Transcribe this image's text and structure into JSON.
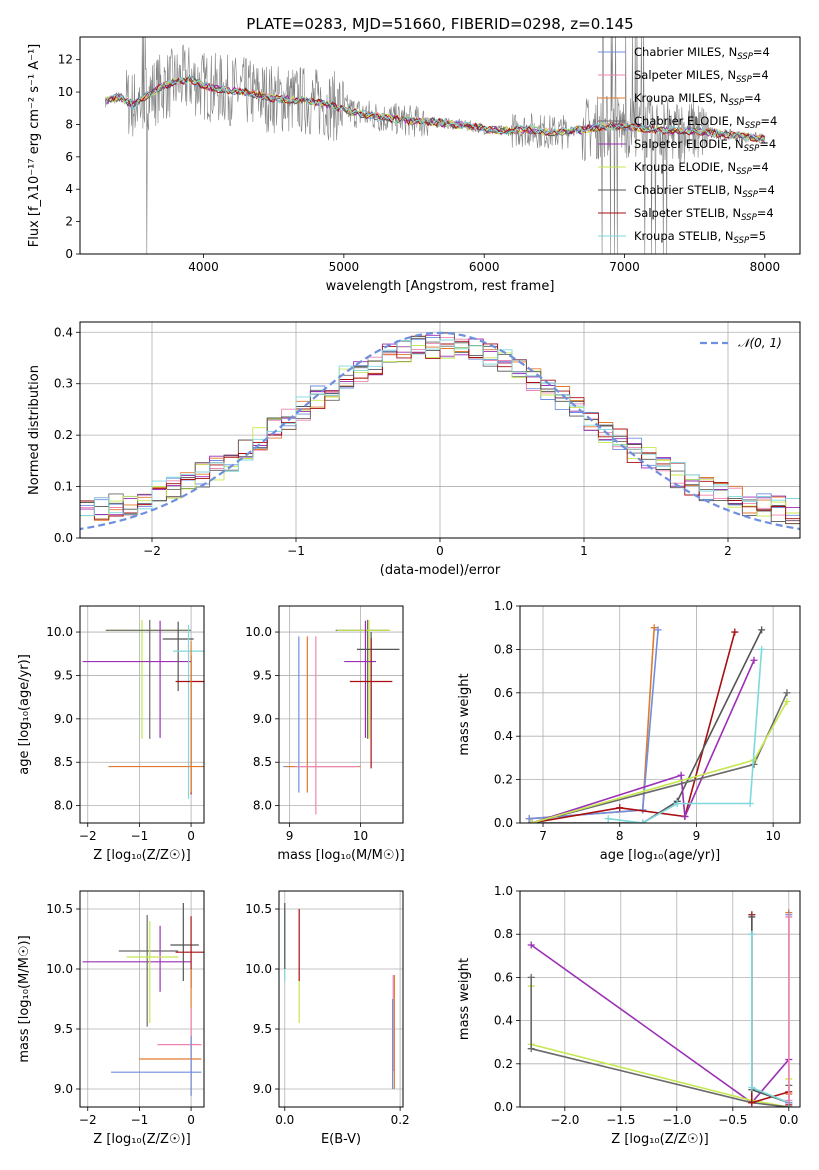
{
  "title": "PLATE=0283, MJD=51660, FIBERID=0298, z=0.145",
  "colors": {
    "Chabrier MILES": "#6f8fdf",
    "Salpeter MILES": "#ef85b0",
    "Kroupa MILES": "#e07a2e",
    "Chabrier ELODIE": "#6a6a6a",
    "Salpeter ELODIE": "#9b2fb5",
    "Kroupa ELODIE": "#c5e84f",
    "Chabrier STELIB": "#555555",
    "Salpeter STELIB": "#a80f12",
    "Kroupa STELIB": "#7ed8dc",
    "data": "#808080",
    "normal": "#6f8fdf"
  },
  "chart_data": [
    {
      "id": "spectrum",
      "type": "line",
      "xlabel": "wavelength [Angstrom, rest frame]",
      "ylabel": "Flux [f_λ10⁻¹⁷ erg cm⁻² s⁻¹ A⁻¹]",
      "xlim": [
        3120,
        8250
      ],
      "ylim": [
        0,
        13.4
      ],
      "xticks": [
        4000,
        5000,
        6000,
        7000,
        8000
      ],
      "yticks": [
        0,
        2,
        4,
        6,
        8,
        10,
        12
      ],
      "grid": false,
      "legend_placement": "right",
      "legend": [
        {
          "model": "Chabrier MILES",
          "nssp": "4"
        },
        {
          "model": "Salpeter MILES",
          "nssp": "4"
        },
        {
          "model": "Kroupa MILES",
          "nssp": "4"
        },
        {
          "model": "Chabrier ELODIE",
          "nssp": "4"
        },
        {
          "model": "Salpeter ELODIE",
          "nssp": "4"
        },
        {
          "model": "Kroupa ELODIE",
          "nssp": "4"
        },
        {
          "model": "Chabrier STELIB",
          "nssp": "4"
        },
        {
          "model": "Salpeter STELIB",
          "nssp": "4"
        },
        {
          "model": "Kroupa STELIB",
          "nssp": "5"
        }
      ],
      "model_continuum": {
        "x": [
          3300,
          3400,
          3500,
          3600,
          3700,
          3800,
          3900,
          4000,
          4100,
          4300,
          4500,
          4700,
          4900,
          5100,
          5300,
          5500,
          5700,
          5900,
          6100,
          6300,
          6500,
          6700,
          6900,
          7100,
          7300,
          7500,
          7700,
          7900,
          8000
        ],
        "y": [
          9.4,
          9.7,
          9.2,
          9.8,
          10.3,
          10.6,
          10.8,
          10.4,
          10.2,
          10.0,
          9.6,
          9.5,
          9.2,
          8.7,
          8.4,
          8.2,
          8.1,
          7.9,
          7.6,
          7.7,
          7.5,
          7.7,
          7.9,
          7.8,
          7.6,
          7.6,
          7.4,
          7.2,
          7.1
        ]
      }
    },
    {
      "id": "residuals",
      "type": "line",
      "xlabel": "(data-model)/error",
      "ylabel": "Normed distribution",
      "xlim": [
        -2.5,
        2.5
      ],
      "ylim": [
        0,
        0.42
      ],
      "xticks": [
        -2,
        -1,
        0,
        1,
        2
      ],
      "yticks": [
        0.0,
        0.1,
        0.2,
        0.3,
        0.4
      ],
      "grid": true,
      "legend_placement": "top-right",
      "legend_label": "𝒩(0, 1)",
      "normal": {
        "mean": 0,
        "sigma": 1
      }
    },
    {
      "id": "age-vs-Z",
      "type": "scatter",
      "xlabel": "Z [log₁₀(Z/Z☉)]",
      "ylabel": "age  [log₁₀(age/yr)]",
      "xlim": [
        -2.15,
        0.25
      ],
      "ylim": [
        7.8,
        10.3
      ],
      "xticks": [
        -2,
        -1,
        0
      ],
      "yticks": [
        8.0,
        8.5,
        9.0,
        9.5,
        10.0
      ],
      "grid": true,
      "errorbars": [
        {
          "model": "Kroupa ELODIE",
          "x": -0.95,
          "xerr": [
            0.7,
            0.95
          ],
          "y": 10.02,
          "yerr": [
            1.25,
            0.12
          ]
        },
        {
          "model": "Chabrier ELODIE",
          "x": -0.8,
          "xerr": [
            0.85,
            0.8
          ],
          "y": 10.02,
          "yerr": [
            1.25,
            0.12
          ]
        },
        {
          "model": "Salpeter ELODIE",
          "x": -0.6,
          "xerr": [
            1.5,
            0.6
          ],
          "y": 9.66,
          "yerr": [
            0.88,
            0.47
          ]
        },
        {
          "model": "Chabrier STELIB",
          "x": -0.25,
          "xerr": [
            0.3,
            0.3
          ],
          "y": 9.92,
          "yerr": [
            0.6,
            0.2
          ]
        },
        {
          "model": "Kroupa STELIB",
          "x": -0.05,
          "xerr": [
            0.3,
            0.3
          ],
          "y": 9.78,
          "yerr": [
            1.7,
            0.3
          ]
        },
        {
          "model": "Salpeter STELIB",
          "x": 0.0,
          "xerr": [
            0.3,
            0.3
          ],
          "y": 9.43,
          "yerr": [
            1.3,
            0.3
          ]
        },
        {
          "model": "Kroupa MILES",
          "x": 0.0,
          "xerr": [
            1.6,
            0.25
          ],
          "y": 8.45,
          "yerr": [
            0.3,
            1.45
          ]
        }
      ]
    },
    {
      "id": "age-vs-mass",
      "type": "scatter",
      "xlabel": "mass [log₁₀(M/M☉)]",
      "ylabel": "",
      "xlim": [
        8.85,
        10.6
      ],
      "ylim": [
        7.8,
        10.3
      ],
      "xticks": [
        9,
        10
      ],
      "yticks": [
        8.0,
        8.5,
        9.0,
        9.5,
        10.0
      ],
      "grid": true,
      "errorbars": [
        {
          "model": "Chabrier ELODIE",
          "x": 10.1,
          "xerr": [
            0.45,
            0.3
          ],
          "y": 10.02,
          "yerr": [
            1.25,
            0.12
          ]
        },
        {
          "model": "Kroupa ELODIE",
          "x": 10.12,
          "xerr": [
            0.45,
            0.3
          ],
          "y": 10.02,
          "yerr": [
            1.25,
            0.12
          ]
        },
        {
          "model": "Salpeter ELODIE",
          "x": 10.07,
          "xerr": [
            0.3,
            0.15
          ],
          "y": 9.66,
          "yerr": [
            0.88,
            0.47
          ]
        },
        {
          "model": "Chabrier STELIB",
          "x": 10.15,
          "xerr": [
            0.2,
            0.4
          ],
          "y": 9.8,
          "yerr": [
            0.8,
            0.2
          ]
        },
        {
          "model": "Salpeter STELIB",
          "x": 10.15,
          "xerr": [
            0.3,
            0.3
          ],
          "y": 9.43,
          "yerr": [
            1.0,
            0.5
          ]
        },
        {
          "model": "Chabrier MILES",
          "x": 9.13,
          "xerr": [
            0.22,
            0.8
          ],
          "y": 8.45,
          "yerr": [
            0.3,
            1.5
          ]
        },
        {
          "model": "Kroupa MILES",
          "x": 9.25,
          "xerr": [
            0.3,
            0.75
          ],
          "y": 8.45,
          "yerr": [
            0.3,
            1.5
          ]
        },
        {
          "model": "Salpeter MILES",
          "x": 9.37,
          "xerr": [
            0.3,
            0.6
          ],
          "y": 8.45,
          "yerr": [
            0.55,
            1.5
          ]
        }
      ]
    },
    {
      "id": "weight-vs-age",
      "type": "line",
      "xlabel": "age  [log₁₀(age/yr)]",
      "ylabel": "mass weight",
      "xlim": [
        6.7,
        10.35
      ],
      "ylim": [
        0,
        1.0
      ],
      "xticks": [
        7,
        8,
        9,
        10
      ],
      "yticks": [
        0.0,
        0.2,
        0.4,
        0.6,
        0.8,
        1.0
      ],
      "grid": true,
      "series": [
        {
          "model": "Kroupa MILES",
          "x": [
            6.82,
            8.3,
            8.45
          ],
          "y": [
            0.02,
            0.06,
            0.9
          ]
        },
        {
          "model": "Chabrier MILES",
          "x": [
            6.82,
            8.3,
            8.5
          ],
          "y": [
            0.02,
            0.06,
            0.89
          ]
        },
        {
          "model": "Salpeter STELIB",
          "x": [
            6.85,
            8.0,
            8.85,
            9.5
          ],
          "y": [
            0.0,
            0.07,
            0.03,
            0.88
          ]
        },
        {
          "model": "Chabrier STELIB",
          "x": [
            6.85,
            8.3,
            8.75,
            9.85
          ],
          "y": [
            0.0,
            0.0,
            0.1,
            0.89
          ]
        },
        {
          "model": "Salpeter ELODIE",
          "x": [
            6.85,
            8.8,
            8.85,
            9.75
          ],
          "y": [
            0.0,
            0.22,
            0.03,
            0.75
          ]
        },
        {
          "model": "Chabrier ELODIE",
          "x": [
            6.85,
            9.75,
            10.18
          ],
          "y": [
            0.0,
            0.27,
            0.6
          ]
        },
        {
          "model": "Kroupa ELODIE",
          "x": [
            6.85,
            9.75,
            10.18
          ],
          "y": [
            0.0,
            0.29,
            0.56
          ]
        },
        {
          "model": "Kroupa STELIB",
          "x": [
            7.85,
            8.3,
            8.75,
            9.7,
            9.85
          ],
          "y": [
            0.02,
            0.0,
            0.09,
            0.09,
            0.8
          ]
        }
      ]
    },
    {
      "id": "mass-vs-Z",
      "type": "scatter",
      "xlabel": "Z [log₁₀(Z/Z☉)]",
      "ylabel": "mass [log₁₀(M/M☉)]",
      "xlim": [
        -2.15,
        0.25
      ],
      "ylim": [
        8.85,
        10.65
      ],
      "xticks": [
        -2,
        -1,
        0
      ],
      "yticks": [
        9.0,
        9.5,
        10.0,
        10.5
      ],
      "grid": true,
      "errorbars": [
        {
          "model": "Salpeter ELODIE",
          "x": -0.6,
          "xerr": [
            1.5,
            0.6
          ],
          "y": 10.06,
          "yerr": [
            0.25,
            0.3
          ]
        },
        {
          "model": "Chabrier ELODIE",
          "x": -0.85,
          "xerr": [
            0.55,
            0.6
          ],
          "y": 10.15,
          "yerr": [
            0.63,
            0.3
          ]
        },
        {
          "model": "Kroupa ELODIE",
          "x": -0.8,
          "xerr": [
            0.45,
            0.55
          ],
          "y": 10.1,
          "yerr": [
            0.55,
            0.3
          ]
        },
        {
          "model": "Chabrier STELIB",
          "x": -0.15,
          "xerr": [
            0.25,
            0.3
          ],
          "y": 10.2,
          "yerr": [
            0.3,
            0.35
          ]
        },
        {
          "model": "Salpeter STELIB",
          "x": 0.0,
          "xerr": [
            0.3,
            0.25
          ],
          "y": 10.14,
          "yerr": [
            0.3,
            0.3
          ]
        },
        {
          "model": "Kroupa MILES",
          "x": 0.0,
          "xerr": [
            1.0,
            0.2
          ],
          "y": 9.25,
          "yerr": [
            0.3,
            0.75
          ]
        },
        {
          "model": "Salpeter MILES",
          "x": 0.0,
          "xerr": [
            0.65,
            0.2
          ],
          "y": 9.37,
          "yerr": [
            0.3,
            0.3
          ]
        },
        {
          "model": "Chabrier MILES",
          "x": 0.0,
          "xerr": [
            1.55,
            0.2
          ],
          "y": 9.14,
          "yerr": [
            0.2,
            0.3
          ]
        }
      ]
    },
    {
      "id": "mass-vs-EBV",
      "type": "scatter",
      "xlabel": "E(B-V)",
      "ylabel": "",
      "xlim": [
        -0.01,
        0.205
      ],
      "ylim": [
        8.85,
        10.65
      ],
      "xticks": [
        0.0,
        0.2
      ],
      "yticks": [
        9.0,
        9.5,
        10.0,
        10.5
      ],
      "grid": true,
      "errorbars": [
        {
          "model": "Kroupa STELIB",
          "x": 0.0,
          "xerr": [
            0,
            0
          ],
          "y": 10.2,
          "yerr": [
            0.3,
            0.3
          ]
        },
        {
          "model": "Chabrier STELIB",
          "x": 0.0,
          "xerr": [
            0,
            0
          ],
          "y": 10.3,
          "yerr": [
            0.3,
            0.25
          ]
        },
        {
          "model": "Salpeter STELIB",
          "x": 0.025,
          "xerr": [
            0,
            0
          ],
          "y": 10.2,
          "yerr": [
            0.3,
            0.3
          ]
        },
        {
          "model": "Kroupa ELODIE",
          "x": 0.025,
          "xerr": [
            0,
            0
          ],
          "y": 9.7,
          "yerr": [
            0.15,
            0.2
          ]
        },
        {
          "model": "Kroupa MILES",
          "x": 0.19,
          "xerr": [
            0,
            0
          ],
          "y": 9.5,
          "yerr": [
            0.5,
            0.45
          ]
        },
        {
          "model": "Salpeter MILES",
          "x": 0.188,
          "xerr": [
            0,
            0
          ],
          "y": 9.5,
          "yerr": [
            0.35,
            0.45
          ]
        },
        {
          "model": "Chabrier MILES",
          "x": 0.187,
          "xerr": [
            0,
            0
          ],
          "y": 9.4,
          "yerr": [
            0.4,
            0.35
          ]
        }
      ]
    },
    {
      "id": "weight-vs-Z",
      "type": "line",
      "xlabel": "Z [log₁₀(Z/Z☉)]",
      "ylabel": "mass weight",
      "xlim": [
        -2.4,
        0.1
      ],
      "ylim": [
        0,
        1.0
      ],
      "xticks": [
        -2.0,
        -1.5,
        -1.0,
        -0.5,
        0.0
      ],
      "yticks": [
        0.0,
        0.2,
        0.4,
        0.6,
        0.8,
        1.0
      ],
      "grid": true,
      "series": [
        {
          "model": "Salpeter ELODIE",
          "x": [
            -2.3,
            -0.33,
            0.0
          ],
          "y": [
            0.75,
            0.02,
            0.22
          ]
        },
        {
          "model": "Kroupa ELODIE",
          "x": [
            -2.3,
            -2.3,
            -0.33,
            0.0,
            0.0
          ],
          "y": [
            0.56,
            0.29,
            0.03,
            0.0,
            0.13
          ]
        },
        {
          "model": "Chabrier ELODIE",
          "x": [
            -2.3,
            -2.3,
            -0.33,
            0.0,
            0.0
          ],
          "y": [
            0.6,
            0.27,
            0.02,
            0.0,
            0.1
          ]
        },
        {
          "model": "Salpeter STELIB",
          "x": [
            -0.33,
            -0.33,
            0.0,
            0.0
          ],
          "y": [
            0.89,
            0.02,
            0.07,
            0.01
          ]
        },
        {
          "model": "Chabrier STELIB",
          "x": [
            -0.33,
            -0.33,
            0.0,
            0.0
          ],
          "y": [
            0.88,
            0.08,
            0.02,
            0.0
          ]
        },
        {
          "model": "Kroupa STELIB",
          "x": [
            -0.33,
            -0.33,
            0.0,
            0.0
          ],
          "y": [
            0.8,
            0.09,
            0.02,
            0.0
          ]
        },
        {
          "model": "Kroupa MILES",
          "x": [
            0.0,
            0.0,
            0.0
          ],
          "y": [
            0.9,
            0.06,
            0.02
          ]
        },
        {
          "model": "Chabrier MILES",
          "x": [
            0.0,
            0.0
          ],
          "y": [
            0.89,
            0.02
          ]
        },
        {
          "model": "Salpeter MILES",
          "x": [
            0.0,
            0.0
          ],
          "y": [
            0.88,
            0.03
          ]
        }
      ]
    }
  ]
}
